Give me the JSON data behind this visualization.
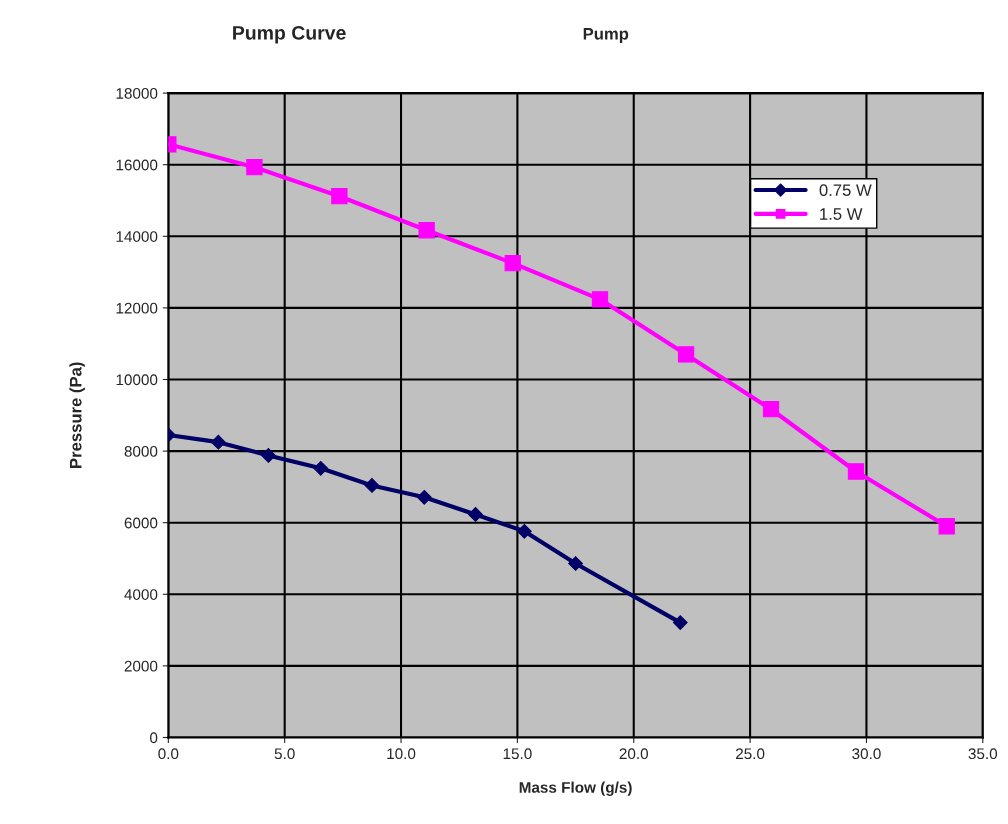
{
  "chart_data": {
    "type": "line",
    "title": "Pump Curve",
    "subtitle": "Pump",
    "xlabel": "Mass Flow (g/s)",
    "ylabel": "Pressure (Pa)",
    "series": [
      {
        "name": "0.75 W",
        "color": "#000066",
        "marker": "diamond",
        "x": [
          0,
          2.15,
          4.3,
          6.55,
          8.75,
          11.0,
          13.2,
          15.3,
          17.5,
          22.0
        ],
        "values": [
          8450,
          8250,
          7880,
          7520,
          7040,
          6710,
          6230,
          5760,
          4860,
          3210
        ]
      },
      {
        "name": "1.5 W",
        "color": "#ff00ff",
        "marker": "square",
        "x": [
          0,
          3.7,
          7.35,
          11.1,
          14.8,
          18.55,
          22.25,
          25.9,
          29.55,
          33.45
        ],
        "values": [
          16570,
          15930,
          15120,
          14170,
          13250,
          12240,
          10700,
          9170,
          7430,
          5900
        ]
      }
    ],
    "xlim": [
      0,
      35
    ],
    "xticks": [
      {
        "value": 0,
        "label": "0.0"
      },
      {
        "value": 5,
        "label": "5.0"
      },
      {
        "value": 10,
        "label": "10.0"
      },
      {
        "value": 15,
        "label": "15.0"
      },
      {
        "value": 20,
        "label": "20.0"
      },
      {
        "value": 25,
        "label": "25.0"
      },
      {
        "value": 30,
        "label": "30.0"
      },
      {
        "value": 35,
        "label": "35.0"
      }
    ],
    "ylim": [
      0,
      18000
    ],
    "yticks": [
      0,
      2000,
      4000,
      6000,
      8000,
      10000,
      12000,
      14000,
      16000,
      18000
    ],
    "grid": true,
    "legend": "top right"
  }
}
